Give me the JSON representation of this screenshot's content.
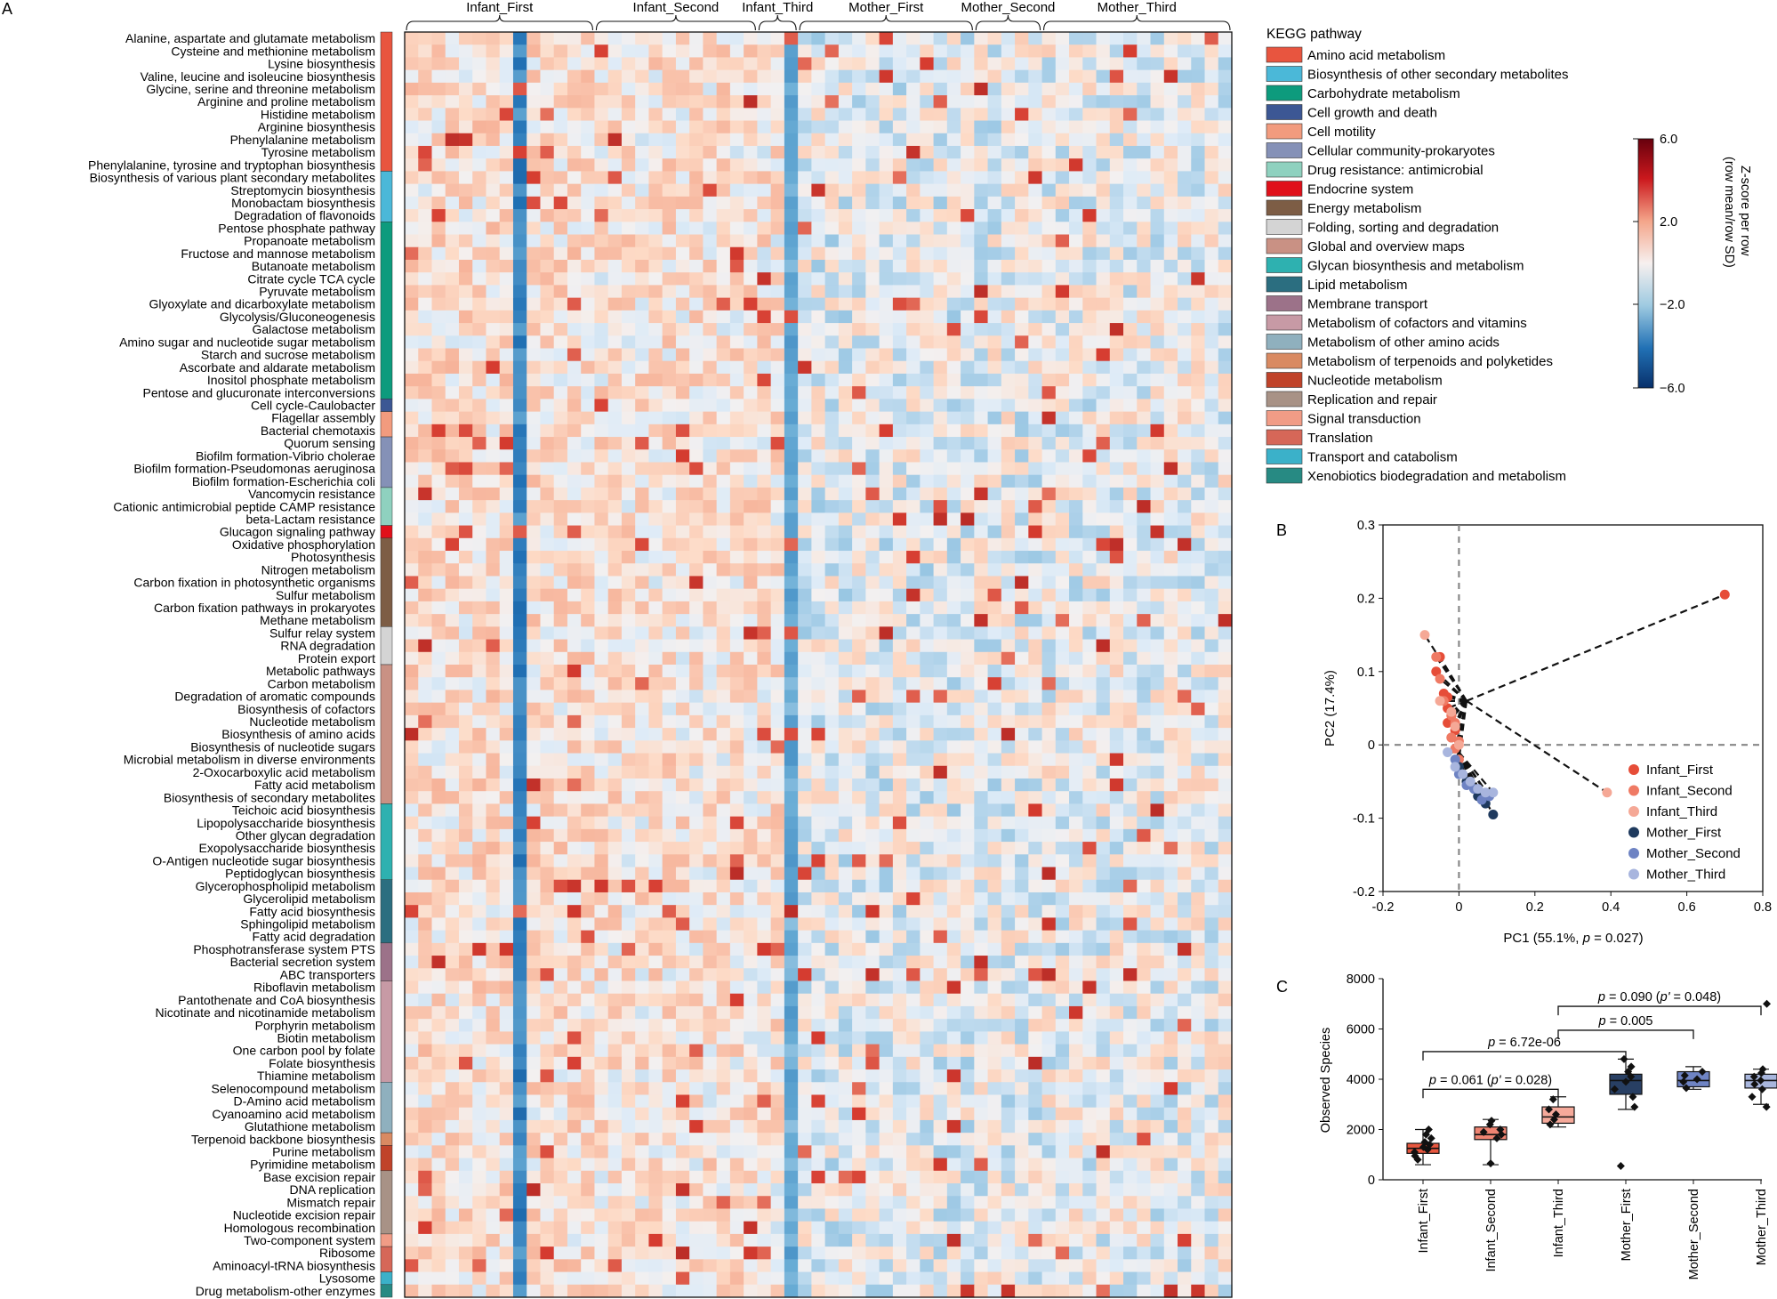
{
  "panels": {
    "a": "A",
    "b": "B",
    "c": "C"
  },
  "chart_data": [
    {
      "type": "heatmap",
      "groups": [
        "Infant_First",
        "Infant_Second",
        "Infant_Third",
        "Mother_First",
        "Mother_Second",
        "Mother_Third"
      ],
      "pathways": [
        "Alanine, aspartate and glutamate metabolism",
        "Cysteine and methionine metabolism",
        "Lysine biosynthesis",
        "Valine, leucine and isoleucine biosynthesis",
        "Glycine, serine and threonine metabolism",
        "Arginine and proline metabolism",
        "Histidine metabolism",
        "Arginine biosynthesis",
        "Phenylalanine metabolism",
        "Tyrosine metabolism",
        "Phenylalanine, tyrosine and tryptophan biosynthesis",
        "Biosynthesis of various plant secondary metabolites",
        "Streptomycin biosynthesis",
        "Monobactam biosynthesis",
        "Degradation of flavonoids",
        "Pentose phosphate pathway",
        "Propanoate metabolism",
        "Fructose and mannose metabolism",
        "Butanoate metabolism",
        "Citrate cycle TCA cycle",
        "Pyruvate metabolism",
        "Glyoxylate and dicarboxylate metabolism",
        "Glycolysis/Gluconeogenesis",
        "Galactose metabolism",
        "Amino sugar and nucleotide sugar metabolism",
        "Starch and sucrose metabolism",
        "Ascorbate and aldarate metabolism",
        "Inositol phosphate metabolism",
        "Pentose and glucuronate interconversions",
        "Cell cycle-Caulobacter",
        "Flagellar assembly",
        "Bacterial chemotaxis",
        "Quorum sensing",
        "Biofilm formation-Vibrio cholerae",
        "Biofilm formation-Pseudomonas aeruginosa",
        "Biofilm formation-Escherichia coli",
        "Vancomycin resistance",
        "Cationic antimicrobial peptide CAMP resistance",
        "beta-Lactam resistance",
        "Glucagon signaling pathway",
        "Oxidative phosphorylation",
        "Photosynthesis",
        "Nitrogen metabolism",
        "Carbon fixation in photosynthetic organisms",
        "Sulfur metabolism",
        "Carbon fixation pathways in prokaryotes",
        "Methane metabolism",
        "Sulfur relay system",
        "RNA degradation",
        "Protein export",
        "Metabolic pathways",
        "Carbon metabolism",
        "Degradation of aromatic compounds",
        "Biosynthesis of cofactors",
        "Nucleotide metabolism",
        "Biosynthesis of amino acids",
        "Biosynthesis of nucleotide sugars",
        "Microbial metabolism in diverse environments",
        "2-Oxocarboxylic acid metabolism",
        "Fatty acid metabolism",
        "Biosynthesis of secondary metabolites",
        "Teichoic acid biosynthesis",
        "Lipopolysaccharide biosynthesis",
        "Other glycan degradation",
        "Exopolysaccharide biosynthesis",
        "O-Antigen nucleotide sugar biosynthesis",
        "Peptidoglycan biosynthesis",
        "Glycerophospholipid metabolism",
        "Glycerolipid metabolism",
        "Fatty acid biosynthesis",
        "Sphingolipid metabolism",
        "Fatty acid degradation",
        "Phosphotransferase system PTS",
        "Bacterial secretion system",
        "ABC transporters",
        "Riboflavin metabolism",
        "Pantothenate and CoA biosynthesis",
        "Nicotinate and nicotinamide metabolism",
        "Porphyrin metabolism",
        "Biotin metabolism",
        "One carbon pool by folate",
        "Folate biosynthesis",
        "Thiamine metabolism",
        "Selenocompound metabolism",
        "D-Amino acid metabolism",
        "Cyanoamino acid metabolism",
        "Glutathione metabolism",
        "Terpenoid backbone biosynthesis",
        "Purine metabolism",
        "Pyrimidine metabolism",
        "Base excision repair",
        "DNA replication",
        "Mismatch repair",
        "Nucleotide excision repair",
        "Homologous recombination",
        "Two-component system",
        "Ribosome",
        "Aminoacyl-tRNA biosynthesis",
        "Lysosome",
        "Drug metabolism-other enzymes"
      ],
      "categories": [
        {
          "name": "Amino acid metabolism",
          "color": "#e8553f",
          "rows": 11
        },
        {
          "name": "Biosynthesis of other secondary metabolites",
          "color": "#4bb8d8",
          "rows": 4
        },
        {
          "name": "Carbohydrate metabolism",
          "color": "#0d9b7d",
          "rows": 14
        },
        {
          "name": "Cell growth and death",
          "color": "#3c5794",
          "rows": 1
        },
        {
          "name": "Cell motility",
          "color": "#f29b7e",
          "rows": 2
        },
        {
          "name": "Cellular community-prokaryotes",
          "color": "#8591b7",
          "rows": 4
        },
        {
          "name": "Drug resistance: antimicrobial",
          "color": "#8fd1bf",
          "rows": 3
        },
        {
          "name": "Endocrine system",
          "color": "#e0101a",
          "rows": 1
        },
        {
          "name": "Energy metabolism",
          "color": "#7d5d45",
          "rows": 7
        },
        {
          "name": "Folding, sorting and degradation",
          "color": "#d4d4d4",
          "rows": 3
        },
        {
          "name": "Global and overview maps",
          "color": "#c99184",
          "rows": 11
        },
        {
          "name": "Glycan biosynthesis and metabolism",
          "color": "#2eb1b0",
          "rows": 6
        },
        {
          "name": "Lipid metabolism",
          "color": "#2b6e80",
          "rows": 5
        },
        {
          "name": "Membrane transport",
          "color": "#9c7289",
          "rows": 3
        },
        {
          "name": "Metabolism of cofactors and vitamins",
          "color": "#c79aa5",
          "rows": 8
        },
        {
          "name": "Metabolism of other amino acids",
          "color": "#8fb0be",
          "rows": 4
        },
        {
          "name": "Metabolism of terpenoids and polyketides",
          "color": "#d98a62",
          "rows": 1
        },
        {
          "name": "Nucleotide metabolism",
          "color": "#c0432a",
          "rows": 2
        },
        {
          "name": "Replication and repair",
          "color": "#a89286",
          "rows": 5
        },
        {
          "name": "Signal transduction",
          "color": "#f19c86",
          "rows": 1
        },
        {
          "name": "Translation",
          "color": "#d66758",
          "rows": 2
        },
        {
          "name": "Transport and catabolism",
          "color": "#3bb1c9",
          "rows": 1
        },
        {
          "name": "Xenobiotics biodegradation and metabolism",
          "color": "#278a83",
          "rows": 1
        }
      ],
      "legend_title": "KEGG pathway",
      "colorbar": {
        "label_line1": "Z-score per row",
        "label_line2": "(row mean/row SD)",
        "ticks": [
          "6.0",
          "2.0",
          "−2.0",
          "−6.0"
        ],
        "range": [
          -6,
          6
        ]
      }
    },
    {
      "type": "scatter",
      "xlabel": "PC1 (55.1%, p = 0.027)",
      "xlabel_prefix": "PC1 (55.1%, ",
      "xlabel_p": "p",
      "xlabel_suffix": " = 0.027)",
      "ylabel": "PC2 (17.4%)",
      "xlim": [
        -0.2,
        0.8
      ],
      "ylim": [
        -0.2,
        0.3
      ],
      "xticks": [
        "-0.2",
        "0",
        "0.2",
        "0.4",
        "0.6",
        "0.8"
      ],
      "yticks": [
        "0.3",
        "0.2",
        "0.1",
        "0",
        "-0.1",
        "-0.2"
      ],
      "series": [
        {
          "name": "Infant_First",
          "color": "#e64d38",
          "points": [
            [
              0.7,
              0.205
            ],
            [
              -0.05,
              0.12
            ],
            [
              -0.06,
              0.1
            ],
            [
              -0.04,
              0.07
            ],
            [
              -0.03,
              0.065
            ],
            [
              -0.03,
              0.05
            ],
            [
              -0.02,
              0.04
            ],
            [
              -0.03,
              0.03
            ],
            [
              -0.01,
              0.02
            ],
            [
              -0.02,
              0.01
            ]
          ]
        },
        {
          "name": "Infant_Second",
          "color": "#ef7a64",
          "points": [
            [
              -0.06,
              0.12
            ],
            [
              -0.05,
              0.09
            ],
            [
              -0.04,
              0.06
            ],
            [
              -0.02,
              0.04
            ],
            [
              -0.01,
              0.03
            ],
            [
              -0.02,
              0.01
            ],
            [
              0.0,
              0.005
            ],
            [
              -0.01,
              -0.005
            ],
            [
              0.0,
              -0.02
            ]
          ]
        },
        {
          "name": "Infant_Third",
          "color": "#f5a896",
          "points": [
            [
              -0.09,
              0.15
            ],
            [
              -0.05,
              0.06
            ],
            [
              -0.02,
              0.045
            ],
            [
              -0.01,
              0.025
            ],
            [
              0.0,
              0.0
            ],
            [
              0.39,
              -0.065
            ]
          ]
        },
        {
          "name": "Mother_First",
          "color": "#1f3a5e",
          "points": [
            [
              0.0,
              -0.03
            ],
            [
              0.02,
              -0.05
            ],
            [
              0.04,
              -0.06
            ],
            [
              0.05,
              -0.07
            ],
            [
              0.07,
              -0.08
            ],
            [
              0.09,
              -0.095
            ]
          ]
        },
        {
          "name": "Mother_Second",
          "color": "#6e83c3",
          "points": [
            [
              -0.01,
              -0.02
            ],
            [
              0.0,
              -0.04
            ],
            [
              0.02,
              -0.055
            ],
            [
              0.04,
              -0.06
            ],
            [
              0.06,
              -0.075
            ],
            [
              0.08,
              -0.07
            ]
          ]
        },
        {
          "name": "Mother_Third",
          "color": "#a8b5de",
          "points": [
            [
              -0.03,
              -0.01
            ],
            [
              -0.01,
              -0.03
            ],
            [
              0.01,
              -0.04
            ],
            [
              0.03,
              -0.05
            ],
            [
              0.05,
              -0.06
            ],
            [
              0.07,
              -0.065
            ],
            [
              0.09,
              -0.065
            ]
          ]
        }
      ],
      "centroid": [
        0.02,
        0.06
      ],
      "centroid2": [
        0.0,
        -0.01
      ]
    },
    {
      "type": "box",
      "ylabel": "Observed Species",
      "ylim": [
        0,
        8000
      ],
      "yticks": [
        "8000",
        "6000",
        "4000",
        "2000",
        "0"
      ],
      "categories": [
        "Infant_First",
        "Infant_Second",
        "Infant_Third",
        "Mother_First",
        "Mother_Second",
        "Mother_Third"
      ],
      "colors": [
        "#e8573f",
        "#ef8472",
        "#f5a99a",
        "#283f63",
        "#6f84c4",
        "#a8b6dd"
      ],
      "boxes": [
        {
          "q1": 1050,
          "median": 1250,
          "q3": 1450,
          "whisker_low": 600,
          "whisker_high": 2000
        },
        {
          "q1": 1600,
          "median": 1800,
          "q3": 2100,
          "whisker_low": 600,
          "whisker_high": 2400
        },
        {
          "q1": 2250,
          "median": 2500,
          "q3": 2900,
          "whisker_low": 2100,
          "whisker_high": 3300
        },
        {
          "q1": 3400,
          "median": 3950,
          "q3": 4200,
          "whisker_low": 2800,
          "whisker_high": 4800
        },
        {
          "q1": 3700,
          "median": 3950,
          "q3": 4300,
          "whisker_low": 3600,
          "whisker_high": 4500
        },
        {
          "q1": 3650,
          "median": 3950,
          "q3": 4200,
          "whisker_low": 3000,
          "whisker_high": 4400
        }
      ],
      "points": [
        [
          800,
          950,
          1100,
          1200,
          1300,
          1400,
          1500,
          1650,
          1800,
          2000
        ],
        [
          650,
          1650,
          1800,
          1900,
          2000,
          2200,
          2350
        ],
        [
          2200,
          2400,
          2600,
          2800,
          3200
        ],
        [
          550,
          2900,
          3300,
          3600,
          3900,
          4100,
          4300,
          4500,
          4800
        ],
        [
          3650,
          3900,
          4000,
          4150,
          4300
        ],
        [
          2900,
          3300,
          3600,
          3800,
          3950,
          4100,
          4250,
          4400,
          7000
        ]
      ],
      "brackets": [
        {
          "from": 0,
          "to": 2,
          "y": 3600,
          "p": "p",
          "eq": " = 0.061 (",
          "p2": "p'",
          "eq2": " = 0.028)"
        },
        {
          "from": 0,
          "to": 3,
          "y": 5100,
          "p": "p",
          "eq": " = 6.72e-06",
          "p2": "",
          "eq2": ""
        },
        {
          "from": 2,
          "to": 4,
          "y": 5950,
          "p": "p",
          "eq": " = 0.005",
          "p2": "",
          "eq2": ""
        },
        {
          "from": 2,
          "to": 5,
          "y": 6900,
          "p": "p",
          "eq": " = 0.090 (",
          "p2": "p'",
          "eq2": " = 0.048)"
        }
      ]
    }
  ]
}
